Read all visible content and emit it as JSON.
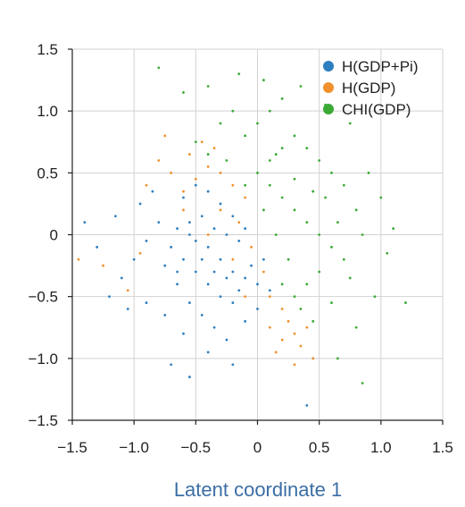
{
  "chart_data": {
    "type": "scatter",
    "title": "",
    "xlabel": "Latent coordinate 1",
    "ylabel": "",
    "xlim": [
      -1.5,
      1.5
    ],
    "ylim": [
      -1.5,
      1.5
    ],
    "xticks": [
      "−1.5",
      "−1.0",
      "−0.5",
      "0",
      "0.5",
      "1.0",
      "1.5"
    ],
    "yticks": [
      "−1.5",
      "−1.0",
      "−0.5",
      "0",
      "0.5",
      "1.0",
      "1.5"
    ],
    "grid": true,
    "legend_position": "top-right",
    "series": [
      {
        "name": "H(GDP+Pi)",
        "color": "#2e7fc1",
        "points": [
          [
            -0.65,
            0.05
          ],
          [
            -0.55,
            0.1
          ],
          [
            -0.45,
            0.15
          ],
          [
            -0.35,
            0.05
          ],
          [
            -0.25,
            0.0
          ],
          [
            -0.15,
            -0.05
          ],
          [
            -0.5,
            -0.05
          ],
          [
            -0.4,
            -0.1
          ],
          [
            -0.3,
            -0.2
          ],
          [
            -0.2,
            -0.3
          ],
          [
            -0.1,
            -0.35
          ],
          [
            0.0,
            -0.4
          ],
          [
            -0.7,
            -0.1
          ],
          [
            -0.6,
            -0.2
          ],
          [
            -0.5,
            -0.3
          ],
          [
            -0.4,
            -0.4
          ],
          [
            -0.3,
            -0.5
          ],
          [
            -0.2,
            -0.55
          ],
          [
            -0.8,
            0.1
          ],
          [
            -0.75,
            -0.25
          ],
          [
            -0.65,
            -0.4
          ],
          [
            -0.55,
            -0.55
          ],
          [
            -0.45,
            -0.65
          ],
          [
            -0.35,
            -0.75
          ],
          [
            -0.9,
            -0.05
          ],
          [
            -1.0,
            -0.2
          ],
          [
            -1.1,
            -0.35
          ],
          [
            -1.2,
            -0.5
          ],
          [
            -0.95,
            0.25
          ],
          [
            -0.85,
            0.35
          ],
          [
            -0.6,
            0.3
          ],
          [
            -0.5,
            0.4
          ],
          [
            -0.4,
            0.35
          ],
          [
            -0.3,
            0.25
          ],
          [
            -0.2,
            0.15
          ],
          [
            -0.1,
            0.05
          ],
          [
            0.05,
            -0.2
          ],
          [
            0.1,
            -0.45
          ],
          [
            0.0,
            -0.6
          ],
          [
            -0.1,
            -0.7
          ],
          [
            -0.25,
            -0.85
          ],
          [
            -0.4,
            -0.95
          ],
          [
            -0.6,
            -0.8
          ],
          [
            -0.75,
            -0.65
          ],
          [
            -0.9,
            -0.55
          ],
          [
            -1.05,
            -0.6
          ],
          [
            -1.3,
            -0.1
          ],
          [
            -1.4,
            0.1
          ],
          [
            -0.7,
            -1.05
          ],
          [
            -0.55,
            -1.15
          ],
          [
            -0.2,
            -1.05
          ],
          [
            0.4,
            -1.38
          ],
          [
            -1.15,
            0.15
          ],
          [
            -0.15,
            -0.45
          ],
          [
            -0.35,
            -0.3
          ],
          [
            -0.45,
            -0.2
          ],
          [
            -0.25,
            -0.35
          ],
          [
            -0.05,
            -0.25
          ],
          [
            -0.55,
            0.0
          ],
          [
            -0.65,
            -0.3
          ]
        ]
      },
      {
        "name": "H(GDP)",
        "color": "#f0902e",
        "points": [
          [
            -0.6,
            0.35
          ],
          [
            -0.5,
            0.45
          ],
          [
            -0.4,
            0.55
          ],
          [
            -0.3,
            0.5
          ],
          [
            -0.2,
            0.4
          ],
          [
            -0.1,
            0.3
          ],
          [
            -0.7,
            0.5
          ],
          [
            -0.8,
            0.6
          ],
          [
            -0.55,
            0.65
          ],
          [
            -0.45,
            0.75
          ],
          [
            -0.35,
            0.7
          ],
          [
            -0.9,
            0.4
          ],
          [
            -0.3,
            0.2
          ],
          [
            -0.15,
            0.1
          ],
          [
            -0.05,
            -0.1
          ],
          [
            0.05,
            -0.3
          ],
          [
            0.1,
            -0.5
          ],
          [
            0.2,
            -0.6
          ],
          [
            0.25,
            -0.7
          ],
          [
            0.3,
            -0.8
          ],
          [
            0.35,
            -0.9
          ],
          [
            0.2,
            -0.85
          ],
          [
            0.1,
            -0.75
          ],
          [
            0.4,
            -0.75
          ],
          [
            -0.95,
            -0.15
          ],
          [
            -1.05,
            -0.45
          ],
          [
            -1.25,
            -0.25
          ],
          [
            -1.45,
            -0.2
          ],
          [
            -0.75,
            0.8
          ],
          [
            0.45,
            -1.0
          ],
          [
            0.3,
            -1.05
          ],
          [
            0.15,
            -0.95
          ],
          [
            -0.2,
            -0.2
          ],
          [
            -0.4,
            0.0
          ],
          [
            -0.6,
            0.2
          ],
          [
            -0.1,
            -0.5
          ]
        ]
      },
      {
        "name": "CHI(GDP)",
        "color": "#3aaa35",
        "points": [
          [
            0.1,
            0.6
          ],
          [
            0.2,
            0.7
          ],
          [
            0.3,
            0.8
          ],
          [
            0.4,
            0.7
          ],
          [
            0.5,
            0.6
          ],
          [
            0.6,
            0.5
          ],
          [
            0.0,
            0.5
          ],
          [
            0.1,
            0.4
          ],
          [
            0.2,
            0.3
          ],
          [
            0.3,
            0.2
          ],
          [
            0.4,
            0.1
          ],
          [
            0.5,
            0.0
          ],
          [
            0.6,
            -0.1
          ],
          [
            0.7,
            -0.2
          ],
          [
            0.5,
            -0.3
          ],
          [
            0.4,
            -0.4
          ],
          [
            0.3,
            -0.5
          ],
          [
            0.35,
            -0.6
          ],
          [
            -0.1,
            0.8
          ],
          [
            0.0,
            0.9
          ],
          [
            0.1,
            1.0
          ],
          [
            0.2,
            1.1
          ],
          [
            -0.2,
            1.0
          ],
          [
            -0.3,
            0.9
          ],
          [
            0.7,
            0.4
          ],
          [
            0.8,
            0.2
          ],
          [
            0.85,
            0.0
          ],
          [
            0.75,
            -0.35
          ],
          [
            0.6,
            -0.55
          ],
          [
            0.45,
            -0.7
          ],
          [
            -0.5,
            0.75
          ],
          [
            -0.4,
            0.65
          ],
          [
            -0.25,
            0.6
          ],
          [
            -0.1,
            0.4
          ],
          [
            0.05,
            0.2
          ],
          [
            0.15,
            0.0
          ],
          [
            0.25,
            -0.2
          ],
          [
            0.2,
            -0.4
          ],
          [
            0.55,
            0.3
          ],
          [
            0.65,
            0.1
          ],
          [
            0.9,
            0.5
          ],
          [
            1.0,
            0.3
          ],
          [
            1.1,
            0.05
          ],
          [
            1.05,
            -0.15
          ],
          [
            0.95,
            -0.5
          ],
          [
            0.8,
            -0.75
          ],
          [
            1.2,
            -0.55
          ],
          [
            0.65,
            -1.0
          ],
          [
            -0.4,
            1.2
          ],
          [
            -0.15,
            1.3
          ],
          [
            0.05,
            1.25
          ],
          [
            0.35,
            1.2
          ],
          [
            0.55,
            1.05
          ],
          [
            0.75,
            0.9
          ],
          [
            -0.8,
            1.35
          ],
          [
            -0.6,
            1.15
          ],
          [
            0.85,
            -1.2
          ],
          [
            0.3,
            0.45
          ],
          [
            0.45,
            0.35
          ],
          [
            0.15,
            0.65
          ]
        ]
      }
    ]
  }
}
